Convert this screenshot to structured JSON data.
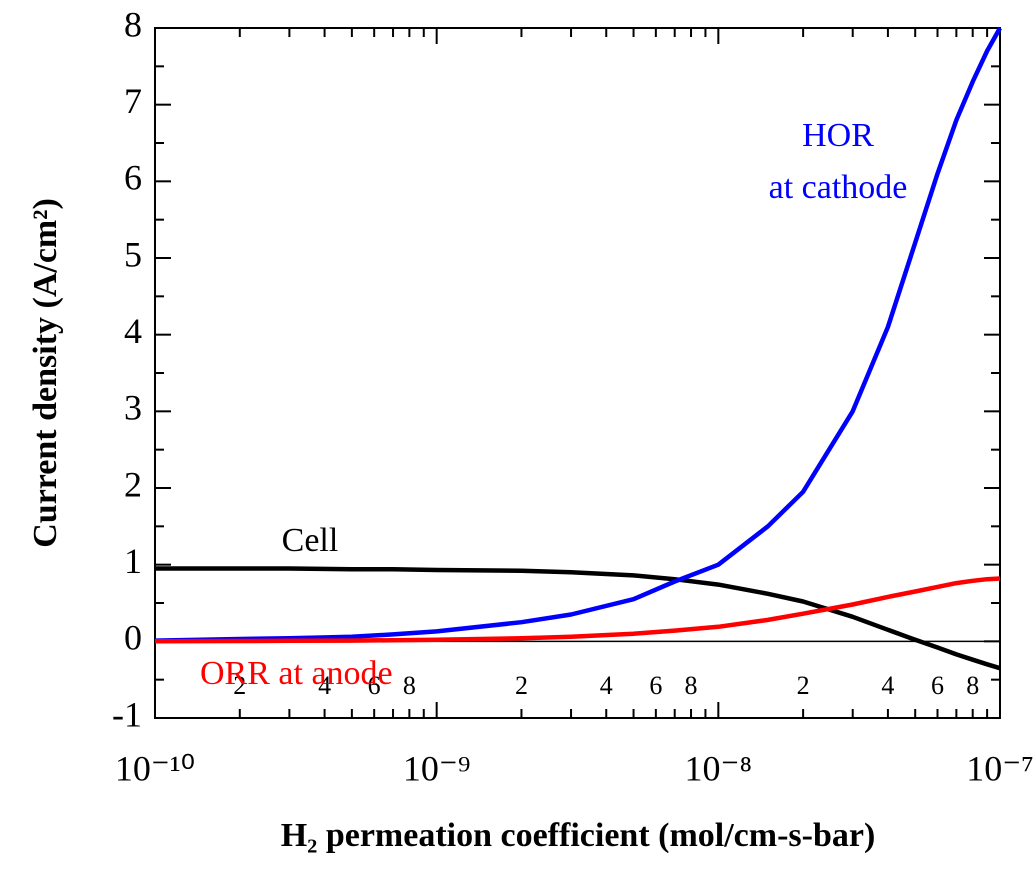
{
  "chart_data": {
    "type": "line",
    "x_label": "H₂ permeation coefficient (mol/cm-s-bar)",
    "y_label": "Current density (A/cm²)",
    "log_x": true,
    "x": [
      1e-10,
      2e-10,
      3e-10,
      5e-10,
      7e-10,
      1e-09,
      2e-09,
      3e-09,
      5e-09,
      7e-09,
      1e-08,
      1.5e-08,
      2e-08,
      3e-08,
      4e-08,
      5e-08,
      6e-08,
      7e-08,
      8e-08,
      9e-08,
      1e-07
    ],
    "series": [
      {
        "color": "#000000",
        "values": [
          0.95,
          0.95,
          0.95,
          0.94,
          0.94,
          0.93,
          0.92,
          0.9,
          0.86,
          0.81,
          0.74,
          0.62,
          0.52,
          0.32,
          0.15,
          0.02,
          -0.08,
          -0.17,
          -0.24,
          -0.3,
          -0.35
        ]
      },
      {
        "color": "#0000ff",
        "values": [
          0.01,
          0.03,
          0.04,
          0.06,
          0.09,
          0.13,
          0.25,
          0.35,
          0.55,
          0.78,
          1.0,
          1.5,
          1.95,
          3.0,
          4.1,
          5.2,
          6.1,
          6.8,
          7.3,
          7.7,
          8.0
        ]
      },
      {
        "color": "#ff0000",
        "values": [
          0,
          0.005,
          0.007,
          0.01,
          0.015,
          0.02,
          0.04,
          0.06,
          0.1,
          0.14,
          0.19,
          0.28,
          0.36,
          0.48,
          0.58,
          0.65,
          0.71,
          0.76,
          0.79,
          0.81,
          0.82
        ]
      }
    ],
    "annotations": [
      {
        "text": "HOR",
        "color": "#0000ff"
      },
      {
        "text": "at cathode",
        "color": "#0000ff"
      },
      {
        "text": "Cell",
        "color": "#000000"
      },
      {
        "text": "ORR at anode",
        "color": "#ff0000"
      }
    ],
    "reference_line": 0,
    "xlim": [
      1e-10,
      1e-07
    ],
    "xticks": [
      {
        "value": 1e-10,
        "label": "10⁻¹⁰"
      },
      {
        "value": 2e-10,
        "label": "2"
      },
      {
        "value": 4e-10,
        "label": "4"
      },
      {
        "value": 6e-10,
        "label": "6"
      },
      {
        "value": 8e-10,
        "label": "8"
      },
      {
        "value": 1e-09,
        "label": "10⁻⁹"
      },
      {
        "value": 2e-09,
        "label": "2"
      },
      {
        "value": 4e-09,
        "label": "4"
      },
      {
        "value": 6e-09,
        "label": "6"
      },
      {
        "value": 8e-09,
        "label": "8"
      },
      {
        "value": 1e-08,
        "label": "10⁻⁸"
      },
      {
        "value": 2e-08,
        "label": "2"
      },
      {
        "value": 4e-08,
        "label": "4"
      },
      {
        "value": 6e-08,
        "label": "6"
      },
      {
        "value": 8e-08,
        "label": "8"
      },
      {
        "value": 1e-07,
        "label": "10⁻⁷"
      }
    ],
    "xminor": [
      3e-10,
      5e-10,
      7e-10,
      9e-10,
      3e-09,
      5e-09,
      7e-09,
      9e-09,
      3e-08,
      5e-08,
      7e-08,
      9e-08
    ],
    "ylim": [
      -1,
      8
    ],
    "yticks": [
      -1,
      0,
      1,
      2,
      3,
      4,
      5,
      6,
      7,
      8
    ],
    "yminor": [
      -0.5,
      0.5,
      1.5,
      2.5,
      3.5,
      4.5,
      5.5,
      6.5,
      7.5
    ]
  }
}
